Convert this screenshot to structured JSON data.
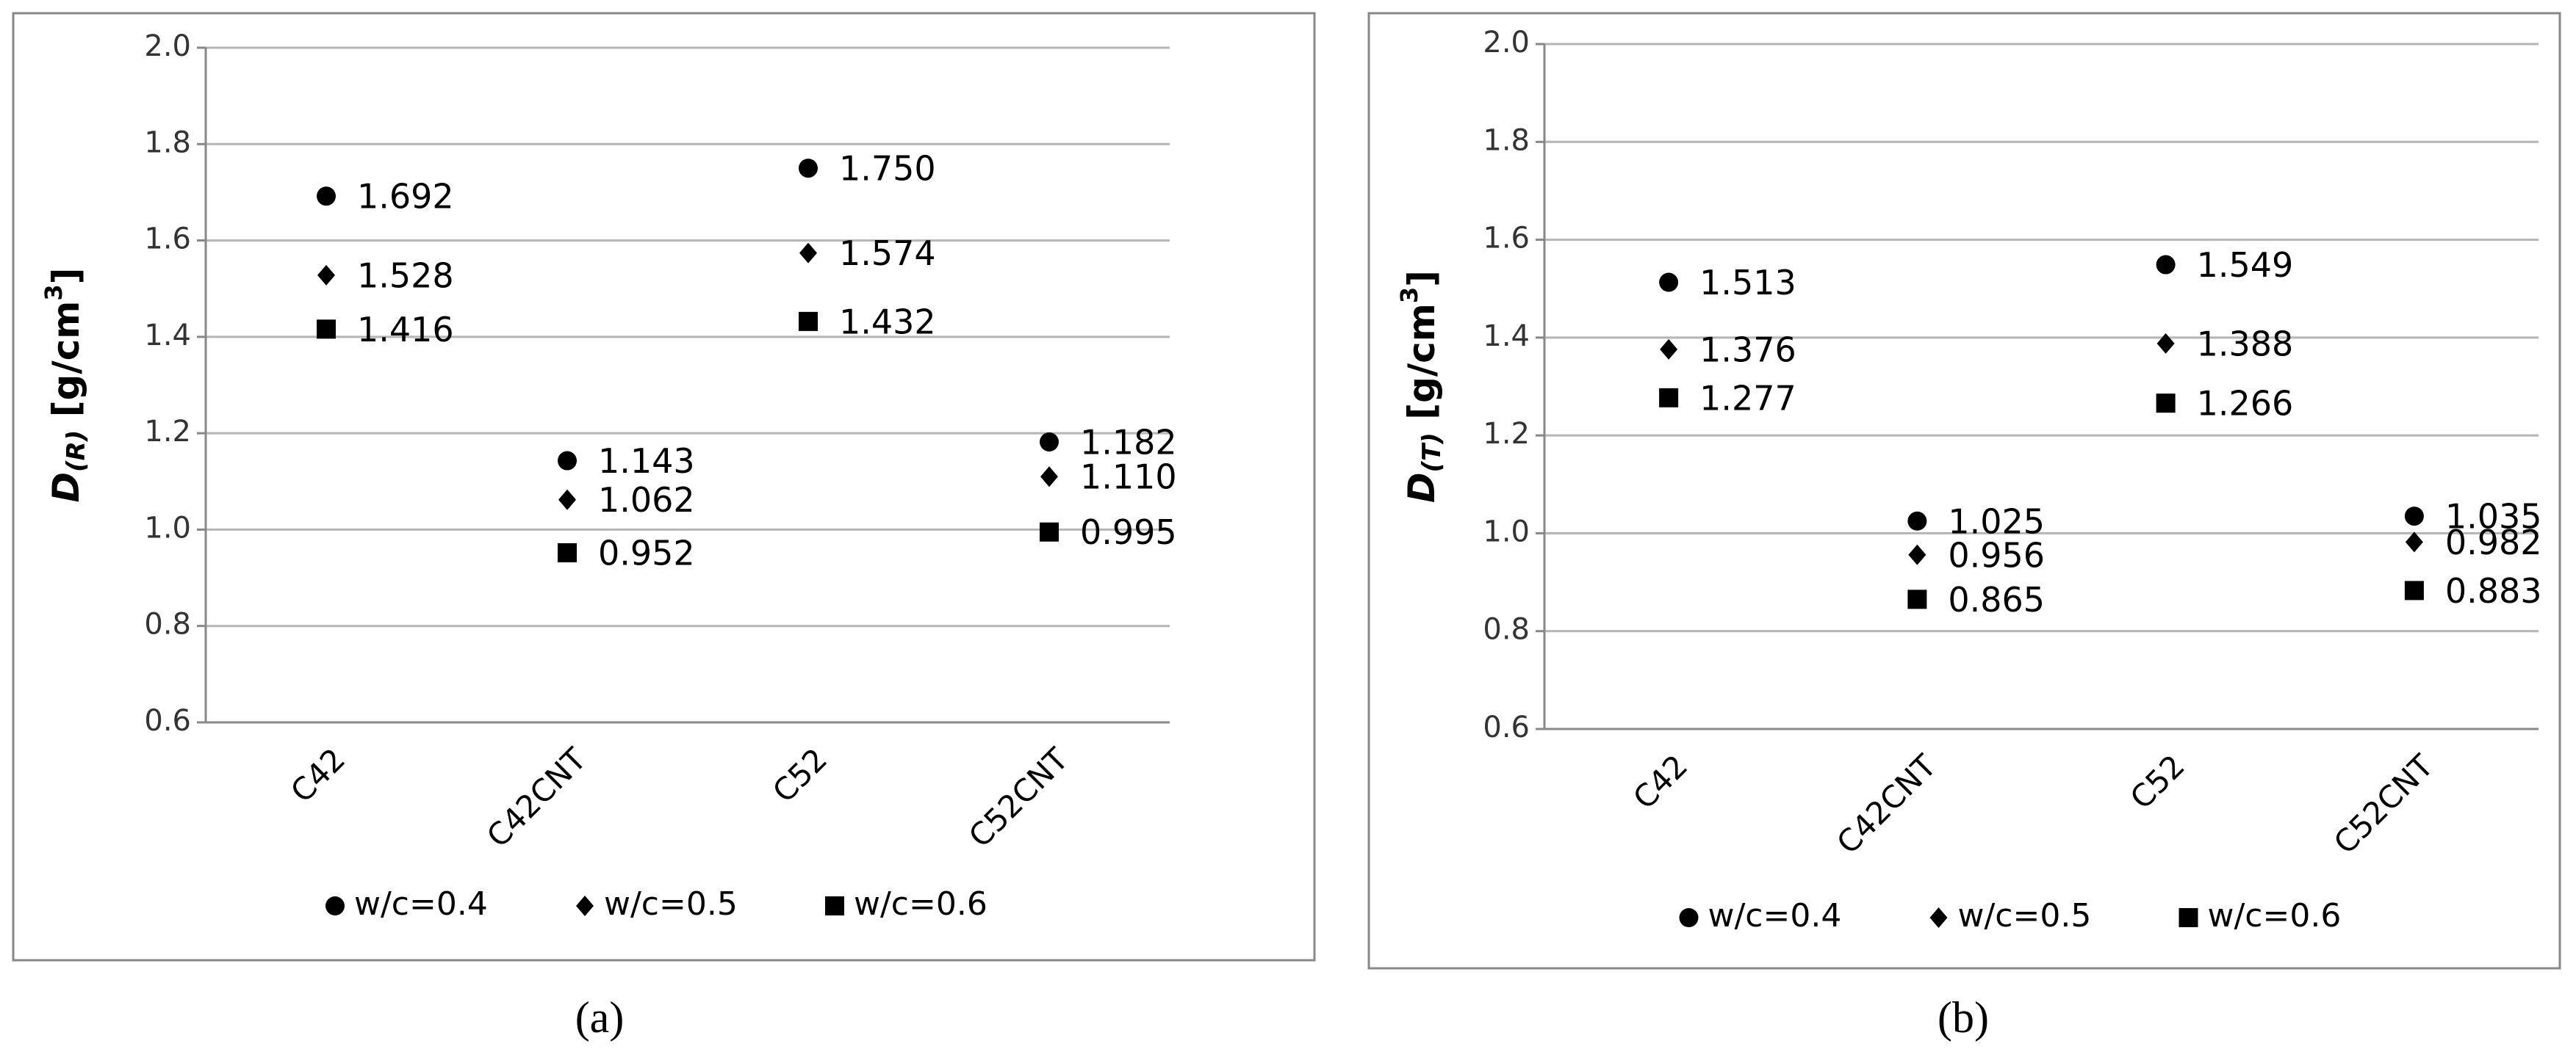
{
  "chart_data": [
    {
      "type": "dot",
      "panel_label": "(a)",
      "ylabel": {
        "symbol": "D",
        "subscript": "(R)",
        "unit": " [g/cm",
        "superscript": "3",
        "close": "]"
      },
      "categories": [
        "C42",
        "C42CNT",
        "C52",
        "C52CNT"
      ],
      "series": [
        {
          "name": "w/c=0.4",
          "color": "#000000",
          "marker": "circle",
          "values": [
            1.692,
            1.143,
            1.75,
            1.182
          ],
          "value_labels": [
            "1.692",
            "1.143",
            "1.750",
            "1.182"
          ]
        },
        {
          "name": "w/c=0.5",
          "color": "#000000",
          "marker": "diamond",
          "values": [
            1.528,
            1.062,
            1.574,
            1.11
          ],
          "value_labels": [
            "1.528",
            "1.062",
            "1.574",
            "1.110"
          ]
        },
        {
          "name": "w/c=0.6",
          "color": "#000000",
          "marker": "square",
          "values": [
            1.416,
            0.952,
            1.432,
            0.995
          ],
          "value_labels": [
            "1.416",
            "0.952",
            "1.432",
            "0.995"
          ]
        }
      ],
      "ylim": [
        0.6,
        2.0
      ],
      "yticks": [
        0.6,
        0.8,
        {
          "value": 1.0,
          "label": "1.0"
        },
        1.2,
        1.4,
        1.6,
        1.8,
        {
          "value": 2.0,
          "label": "2.0"
        }
      ],
      "grid": true,
      "legend": "bottom"
    },
    {
      "type": "dot",
      "panel_label": "(b)",
      "ylabel": {
        "symbol": "D",
        "subscript": "(T)",
        "unit": " [g/cm",
        "superscript": "3",
        "close": "]"
      },
      "categories": [
        "C42",
        "C42CNT",
        "C52",
        "C52CNT"
      ],
      "series": [
        {
          "name": "w/c=0.4",
          "color": "#000000",
          "marker": "circle",
          "values": [
            1.513,
            1.025,
            1.549,
            1.035
          ],
          "value_labels": [
            "1.513",
            "1.025",
            "1.549",
            "1.035"
          ]
        },
        {
          "name": "w/c=0.5",
          "color": "#000000",
          "marker": "diamond",
          "values": [
            1.376,
            0.956,
            1.388,
            0.982
          ],
          "value_labels": [
            "1.376",
            "0.956",
            "1.388",
            "0.982"
          ]
        },
        {
          "name": "w/c=0.6",
          "color": "#000000",
          "marker": "square",
          "values": [
            1.277,
            0.865,
            1.266,
            0.883
          ],
          "value_labels": [
            "1.277",
            "0.865",
            "1.266",
            "0.883"
          ]
        }
      ],
      "ylim": [
        0.6,
        2.0
      ],
      "yticks": [
        0.6,
        0.8,
        {
          "value": 1.0,
          "label": "1.0"
        },
        1.2,
        1.4,
        1.6,
        1.8,
        {
          "value": 2.0,
          "label": "2.0"
        }
      ],
      "grid": true,
      "legend": "bottom"
    }
  ]
}
